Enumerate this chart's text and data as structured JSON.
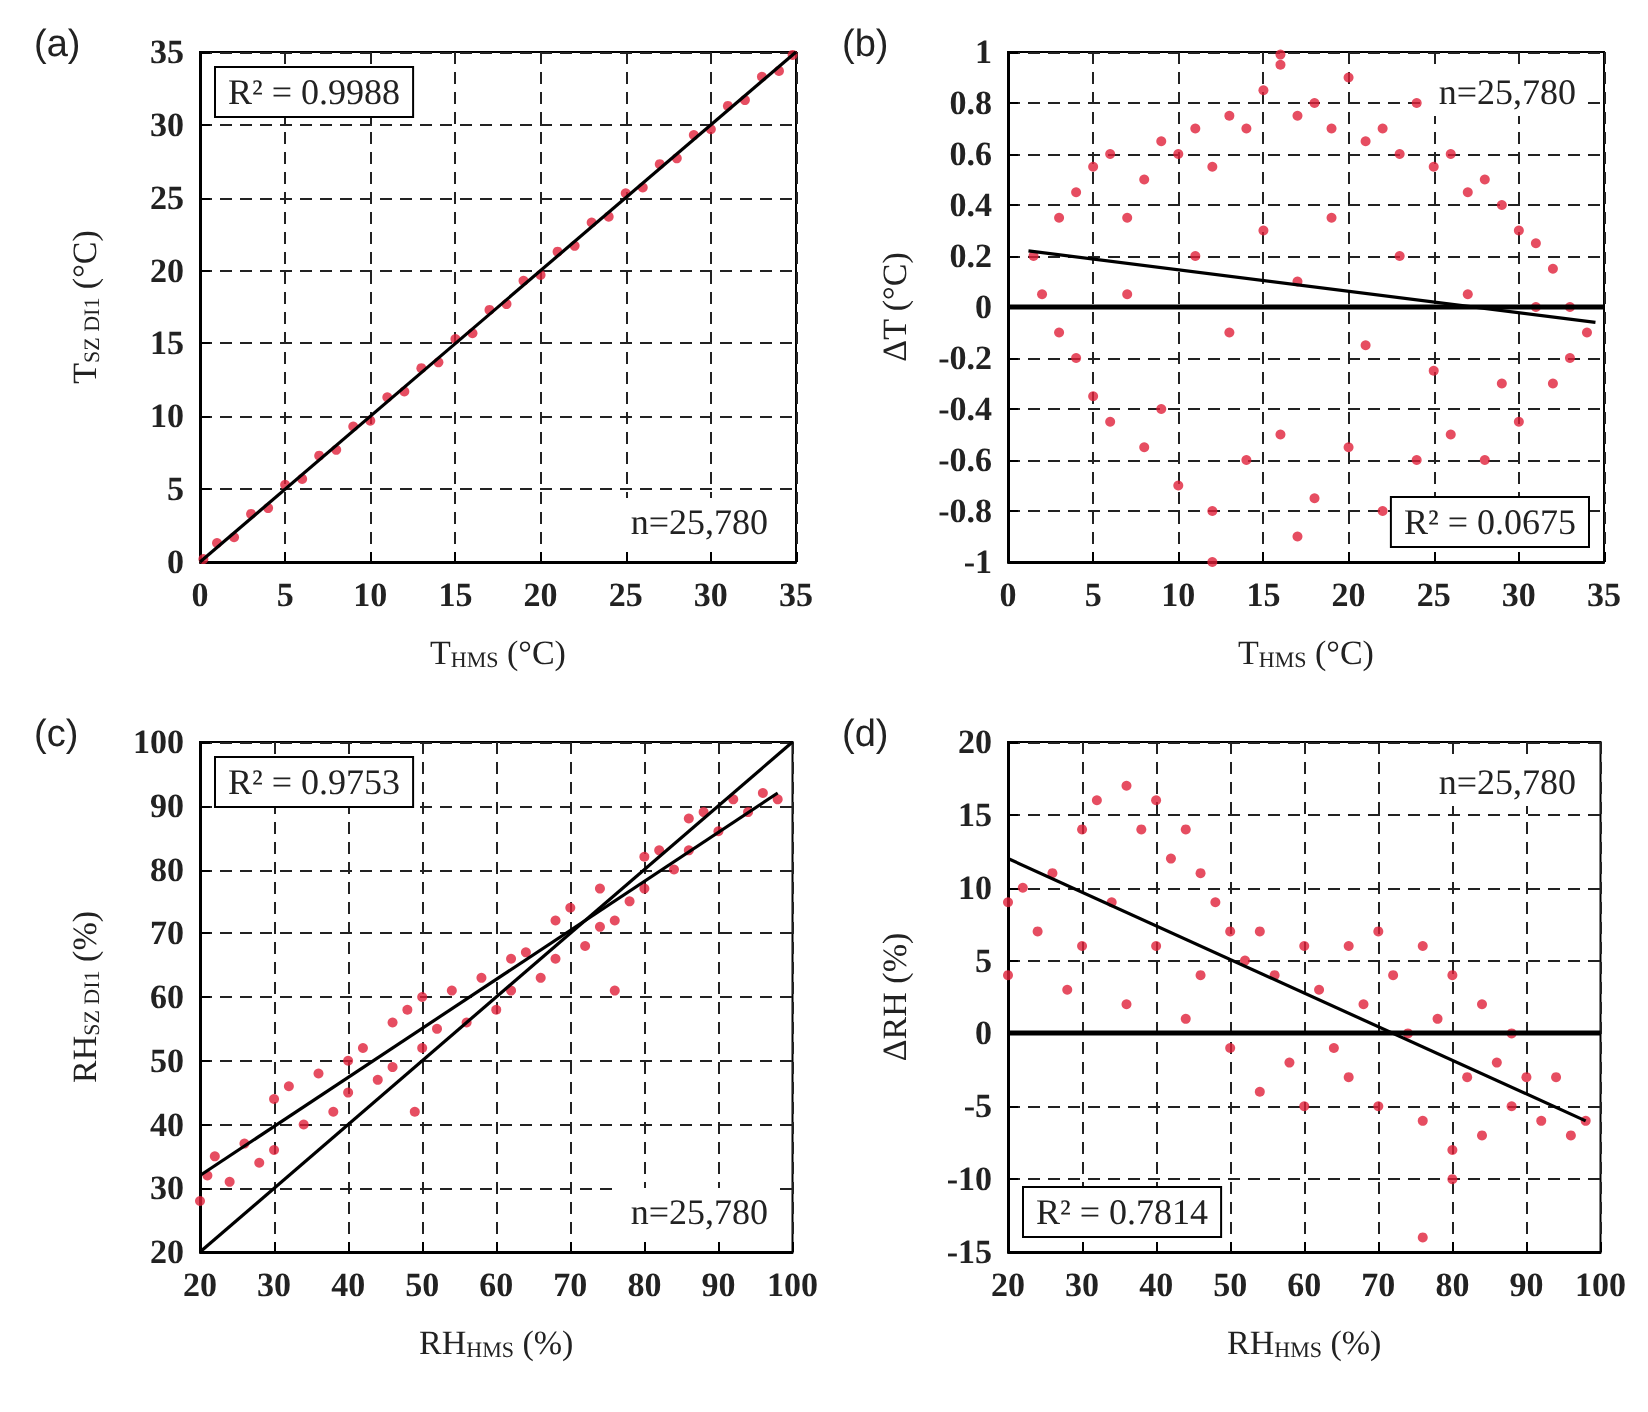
{
  "chart_data": [
    {
      "type": "scatter",
      "title": "(a)",
      "xlabel": "T$_{HMS}$ (°C)",
      "ylabel": "T$_{SZ DI1}$ (°C)",
      "xlim": [
        0,
        35
      ],
      "ylim": [
        0,
        35
      ],
      "xticks": [
        0,
        5,
        10,
        15,
        20,
        25,
        30,
        35
      ],
      "yticks": [
        0,
        5,
        10,
        15,
        20,
        25,
        30,
        35
      ],
      "grid": true,
      "marker": "circle",
      "annotations": [
        "R² = 0.9988",
        "n=25,780"
      ],
      "series": [
        {
          "color": "#e0203a",
          "x": [
            0.2,
            1,
            2,
            3,
            4,
            5,
            6,
            7,
            8,
            9,
            10,
            11,
            12,
            13,
            14,
            15,
            16,
            17,
            18,
            19,
            20,
            21,
            22,
            23,
            24,
            25,
            26,
            27,
            28,
            29,
            30,
            31,
            32,
            33,
            34,
            34.8
          ],
          "values": [
            0.2,
            1.3,
            1.7,
            3.3,
            3.7,
            5.3,
            5.7,
            7.3,
            7.7,
            9.3,
            9.7,
            11.3,
            11.7,
            13.3,
            13.7,
            15.3,
            15.7,
            17.3,
            17.7,
            19.3,
            19.7,
            21.3,
            21.7,
            23.3,
            23.7,
            25.3,
            25.7,
            27.3,
            27.7,
            29.3,
            29.7,
            31.3,
            31.7,
            33.3,
            33.7,
            34.8
          ]
        },
        {
          "type": "line",
          "marker": "none",
          "color": "#000000",
          "x": [
            0,
            35
          ],
          "values": [
            0,
            35
          ]
        }
      ]
    },
    {
      "type": "scatter",
      "title": "(b)",
      "xlabel": "T$_{HMS}$ (°C)",
      "ylabel": "ΔT (°C)",
      "xlim": [
        0,
        35
      ],
      "ylim": [
        -1,
        1
      ],
      "xticks": [
        0,
        5,
        10,
        15,
        20,
        25,
        30,
        35
      ],
      "yticks": [
        -1,
        -0.8,
        -0.6,
        -0.4,
        -0.2,
        0,
        0.2,
        0.4,
        0.6,
        0.8,
        1
      ],
      "grid": true,
      "marker": "circle",
      "annotations": [
        "R² = 0.0675",
        "n=25,780"
      ],
      "ref_lines": [
        {
          "axis": "y",
          "value": 0,
          "color": "#000000"
        }
      ],
      "series": [
        {
          "color": "#e0203a",
          "x": [
            1.5,
            2,
            3,
            3,
            4,
            4,
            5,
            5,
            6,
            6,
            7,
            7,
            8,
            8,
            9,
            9,
            10,
            10,
            11,
            11,
            12,
            12,
            13,
            13,
            14,
            14,
            15,
            15,
            16,
            16,
            17,
            17,
            18,
            18,
            19,
            19,
            20,
            20,
            21,
            21,
            22,
            22,
            23,
            23,
            24,
            24,
            25,
            25,
            26,
            26,
            27,
            27,
            28,
            28,
            29,
            29,
            30,
            30,
            31,
            31,
            32,
            32,
            33,
            33,
            34,
            12,
            17,
            16
          ],
          "values": [
            0.2,
            0.05,
            0.35,
            -0.1,
            0.45,
            -0.2,
            0.55,
            -0.35,
            0.6,
            -0.45,
            0.35,
            0.05,
            0.5,
            -0.55,
            0.65,
            -0.4,
            0.6,
            -0.7,
            0.7,
            0.2,
            0.55,
            -0.8,
            0.75,
            -0.1,
            0.7,
            -0.6,
            0.85,
            0.3,
            0.95,
            -0.5,
            0.75,
            0.1,
            0.8,
            -0.75,
            0.7,
            0.35,
            0.9,
            -0.55,
            0.65,
            -0.15,
            0.7,
            -0.8,
            0.6,
            0.2,
            0.8,
            -0.6,
            0.55,
            -0.25,
            0.6,
            -0.5,
            0.45,
            0.05,
            0.5,
            -0.6,
            0.4,
            -0.3,
            0.3,
            -0.45,
            0.25,
            0,
            0.15,
            -0.3,
            0,
            -0.2,
            -0.1,
            -1,
            -0.9,
            0.99
          ]
        },
        {
          "type": "line",
          "marker": "none",
          "color": "#000000",
          "x": [
            1.2,
            34.5
          ],
          "values": [
            0.22,
            -0.06
          ]
        }
      ]
    },
    {
      "type": "scatter",
      "title": "(c)",
      "xlabel": "RH$_{HMS}$ (%)",
      "ylabel": "RH$_{SZ DI1}$ (%)",
      "xlim": [
        20,
        100
      ],
      "ylim": [
        20,
        100
      ],
      "xticks": [
        20,
        30,
        40,
        50,
        60,
        70,
        80,
        90,
        100
      ],
      "yticks": [
        20,
        30,
        40,
        50,
        60,
        70,
        80,
        90,
        100
      ],
      "grid": true,
      "marker": "circle",
      "annotations": [
        "R² = 0.9753",
        "n=25,780"
      ],
      "series": [
        {
          "color": "#e0203a",
          "x": [
            20,
            21,
            22,
            24,
            26,
            28,
            30,
            30,
            32,
            34,
            36,
            38,
            40,
            40,
            42,
            44,
            46,
            46,
            48,
            50,
            50,
            52,
            54,
            56,
            58,
            60,
            62,
            62,
            64,
            66,
            68,
            68,
            70,
            72,
            74,
            74,
            76,
            78,
            80,
            80,
            82,
            84,
            86,
            86,
            88,
            90,
            92,
            94,
            96,
            98,
            49,
            76
          ],
          "values": [
            28,
            32,
            35,
            31,
            37,
            34,
            44,
            36,
            46,
            40,
            48,
            42,
            50,
            45,
            52,
            47,
            56,
            49,
            58,
            52,
            60,
            55,
            61,
            56,
            63,
            58,
            66,
            61,
            67,
            63,
            72,
            66,
            74,
            68,
            77,
            71,
            72,
            75,
            82,
            77,
            83,
            80,
            88,
            83,
            89,
            86,
            91,
            89,
            92,
            91,
            42,
            61
          ]
        },
        {
          "type": "line",
          "marker": "none",
          "color": "#000000",
          "x": [
            20,
            98
          ],
          "values": [
            32,
            92
          ]
        },
        {
          "type": "line",
          "marker": "none",
          "color": "#000000",
          "x": [
            20,
            100
          ],
          "values": [
            20,
            100
          ]
        }
      ]
    },
    {
      "type": "scatter",
      "title": "(d)",
      "xlabel": "RH$_{HMS}$ (%)",
      "ylabel": "ΔRH (%)",
      "xlim": [
        20,
        100
      ],
      "ylim": [
        -15,
        20
      ],
      "xticks": [
        20,
        30,
        40,
        50,
        60,
        70,
        80,
        90,
        100
      ],
      "yticks": [
        -15,
        -10,
        -5,
        0,
        5,
        10,
        15,
        20
      ],
      "grid": true,
      "marker": "circle",
      "annotations": [
        "R² = 0.7814",
        "n=25,780"
      ],
      "ref_lines": [
        {
          "axis": "y",
          "value": 0,
          "color": "#000000"
        }
      ],
      "series": [
        {
          "color": "#e0203a",
          "x": [
            20,
            20,
            22,
            24,
            26,
            28,
            30,
            30,
            32,
            34,
            36,
            36,
            38,
            40,
            40,
            42,
            44,
            44,
            46,
            46,
            48,
            50,
            50,
            52,
            54,
            54,
            56,
            58,
            60,
            60,
            62,
            64,
            66,
            66,
            68,
            70,
            70,
            72,
            74,
            76,
            76,
            78,
            80,
            80,
            82,
            84,
            84,
            86,
            88,
            88,
            90,
            92,
            94,
            96,
            98,
            76,
            80
          ],
          "values": [
            9,
            4,
            10,
            7,
            11,
            3,
            14,
            6,
            16,
            9,
            17,
            2,
            14,
            16,
            6,
            12,
            14,
            1,
            11,
            4,
            9,
            7,
            -1,
            5,
            7,
            -4,
            4,
            -2,
            6,
            -5,
            3,
            -1,
            6,
            -3,
            2,
            7,
            -5,
            4,
            0,
            6,
            -6,
            1,
            4,
            -8,
            -3,
            2,
            -7,
            -2,
            0,
            -5,
            -3,
            -6,
            -3,
            -7,
            -6,
            -14,
            -10
          ]
        },
        {
          "type": "line",
          "marker": "none",
          "color": "#000000",
          "x": [
            20,
            98
          ],
          "values": [
            12,
            -6
          ]
        }
      ]
    }
  ]
}
